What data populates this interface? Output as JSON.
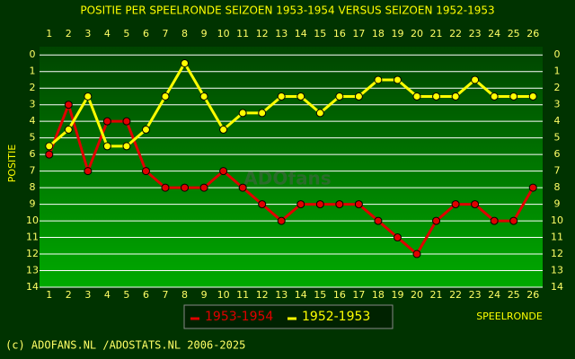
{
  "chart_data": {
    "type": "line",
    "title": "POSITIE PER SPEELRONDE SEIZOEN 1953-1954 VERSUS SEIZOEN 1952-1953",
    "y_label": "POSITIE",
    "x_label": "SPEELRONDE",
    "watermark": "ADOfans",
    "footer": "(c) ADOFANS.NL /ADOSTATS.NL 2006-2025",
    "x": [
      1,
      2,
      3,
      4,
      5,
      6,
      7,
      8,
      9,
      10,
      11,
      12,
      13,
      14,
      15,
      16,
      17,
      18,
      19,
      20,
      21,
      22,
      23,
      24,
      25,
      26
    ],
    "xlim": [
      0.5,
      26.5
    ],
    "ylim": [
      -0.5,
      14
    ],
    "y_inverted": true,
    "yticks": [
      0,
      1,
      2,
      3,
      4,
      5,
      6,
      7,
      8,
      9,
      10,
      11,
      12,
      13,
      14
    ],
    "grid": true,
    "series": [
      {
        "name": "1953-1954",
        "color": "#e00000",
        "values": [
          6,
          3,
          7,
          4,
          4,
          7,
          8,
          8,
          8,
          7,
          8,
          9,
          10,
          9,
          9,
          9,
          9,
          10,
          11,
          12,
          10,
          9,
          9,
          10,
          10,
          8
        ]
      },
      {
        "name": "1952-1953",
        "color": "#ffff00",
        "values": [
          5.5,
          4.5,
          2.5,
          5.5,
          5.5,
          4.5,
          2.5,
          0.5,
          2.5,
          4.5,
          3.5,
          3.5,
          2.5,
          2.5,
          3.5,
          2.5,
          2.5,
          1.5,
          1.5,
          2.5,
          2.5,
          2.5,
          1.5,
          2.5,
          2.5,
          2.5
        ]
      }
    ]
  }
}
